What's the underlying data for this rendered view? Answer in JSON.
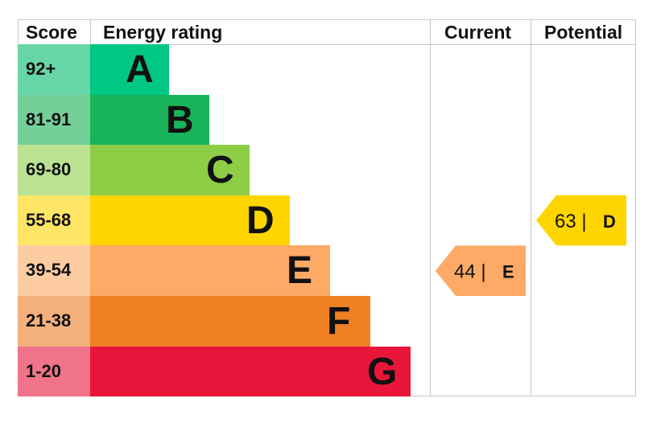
{
  "headers": {
    "score": "Score",
    "energy_rating": "Energy rating",
    "current": "Current",
    "potential": "Potential"
  },
  "bands": [
    {
      "score": "92+",
      "letter": "A",
      "bar_color": "#00c781",
      "cell_color": "#66d6a7"
    },
    {
      "score": "81-91",
      "letter": "B",
      "bar_color": "#19b459",
      "cell_color": "#74cf98"
    },
    {
      "score": "69-80",
      "letter": "C",
      "bar_color": "#8dce46",
      "cell_color": "#bbe290"
    },
    {
      "score": "55-68",
      "letter": "D",
      "bar_color": "#ffd500",
      "cell_color": "#ffe566"
    },
    {
      "score": "39-54",
      "letter": "E",
      "bar_color": "#fcaa65",
      "cell_color": "#fdcca3"
    },
    {
      "score": "21-38",
      "letter": "F",
      "bar_color": "#ef8023",
      "cell_color": "#f4b07b"
    },
    {
      "score": "1-20",
      "letter": "G",
      "bar_color": "#e9153b",
      "cell_color": "#f07389"
    }
  ],
  "chart_data": {
    "type": "bar",
    "title": "",
    "categories": [
      "A",
      "B",
      "C",
      "D",
      "E",
      "F",
      "G"
    ],
    "score_ranges": [
      "92+",
      "81-91",
      "69-80",
      "55-68",
      "39-54",
      "21-38",
      "1-20"
    ],
    "current": {
      "value": 44,
      "band": "E",
      "label": "44 |",
      "color": "#fcaa65"
    },
    "potential": {
      "value": 63,
      "band": "D",
      "label": "63 |",
      "color": "#ffd500"
    }
  }
}
